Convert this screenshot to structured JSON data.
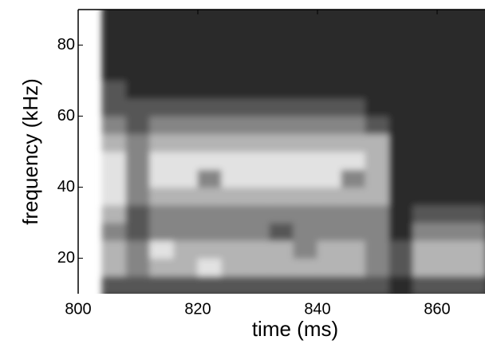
{
  "chart_data": {
    "type": "spectrogram",
    "xlabel": "time (ms)",
    "ylabel": "frequency (kHz)",
    "xlim": [
      800,
      868
    ],
    "ylim": [
      10,
      90
    ],
    "xticks": [
      800,
      820,
      840,
      860
    ],
    "yticks": [
      20,
      40,
      60,
      80
    ],
    "xbins": [
      804,
      808,
      812,
      816,
      820,
      824,
      828,
      832,
      836,
      840,
      844,
      848,
      852,
      856,
      860,
      864,
      868
    ],
    "ybins": [
      10,
      15,
      20,
      25,
      30,
      35,
      40,
      45,
      50,
      55,
      60,
      65,
      70,
      75,
      80,
      85,
      90
    ],
    "colors": [
      "#2b2b2b",
      "#565656",
      "#858585",
      "#b4b4b4",
      "#e2e2e2",
      "#f7f7f7"
    ],
    "z": [
      [
        1,
        1,
        1,
        1,
        1,
        1,
        1,
        1,
        1,
        1,
        1,
        1,
        0,
        1,
        1,
        1
      ],
      [
        3,
        2,
        3,
        3,
        4,
        3,
        3,
        3,
        3,
        3,
        3,
        2,
        1,
        3,
        3,
        3
      ],
      [
        3,
        2,
        4,
        3,
        3,
        3,
        3,
        3,
        2,
        3,
        3,
        2,
        1,
        3,
        3,
        3
      ],
      [
        2,
        1,
        2,
        2,
        2,
        2,
        2,
        1,
        2,
        2,
        2,
        2,
        0,
        2,
        2,
        2
      ],
      [
        3,
        1,
        2,
        2,
        2,
        2,
        2,
        2,
        2,
        2,
        2,
        2,
        0,
        1,
        1,
        1
      ],
      [
        4,
        2,
        3,
        3,
        3,
        3,
        3,
        3,
        3,
        3,
        3,
        3,
        0,
        0,
        0,
        0
      ],
      [
        4,
        2,
        4,
        4,
        2,
        4,
        4,
        4,
        4,
        4,
        2,
        3,
        0,
        0,
        0,
        0
      ],
      [
        4,
        2,
        4,
        4,
        4,
        4,
        4,
        4,
        4,
        4,
        4,
        3,
        0,
        0,
        0,
        0
      ],
      [
        3,
        2,
        3,
        3,
        3,
        3,
        3,
        3,
        3,
        3,
        3,
        3,
        0,
        0,
        0,
        0
      ],
      [
        2,
        1,
        2,
        2,
        2,
        2,
        2,
        2,
        2,
        2,
        2,
        1,
        0,
        0,
        0,
        0
      ],
      [
        1,
        1,
        1,
        1,
        1,
        1,
        1,
        1,
        1,
        1,
        1,
        0,
        0,
        0,
        0,
        0
      ],
      [
        1,
        0,
        0,
        0,
        0,
        0,
        0,
        0,
        0,
        0,
        0,
        0,
        0,
        0,
        0,
        0
      ],
      [
        0,
        0,
        0,
        0,
        0,
        0,
        0,
        0,
        0,
        0,
        0,
        0,
        0,
        0,
        0,
        0
      ],
      [
        0,
        0,
        0,
        0,
        0,
        0,
        0,
        0,
        0,
        0,
        0,
        0,
        0,
        0,
        0,
        0
      ],
      [
        0,
        0,
        0,
        0,
        0,
        0,
        0,
        0,
        0,
        0,
        0,
        0,
        0,
        0,
        0,
        0
      ],
      [
        0,
        0,
        0,
        0,
        0,
        0,
        0,
        0,
        0,
        0,
        0,
        0,
        0,
        0,
        0,
        0
      ]
    ]
  }
}
